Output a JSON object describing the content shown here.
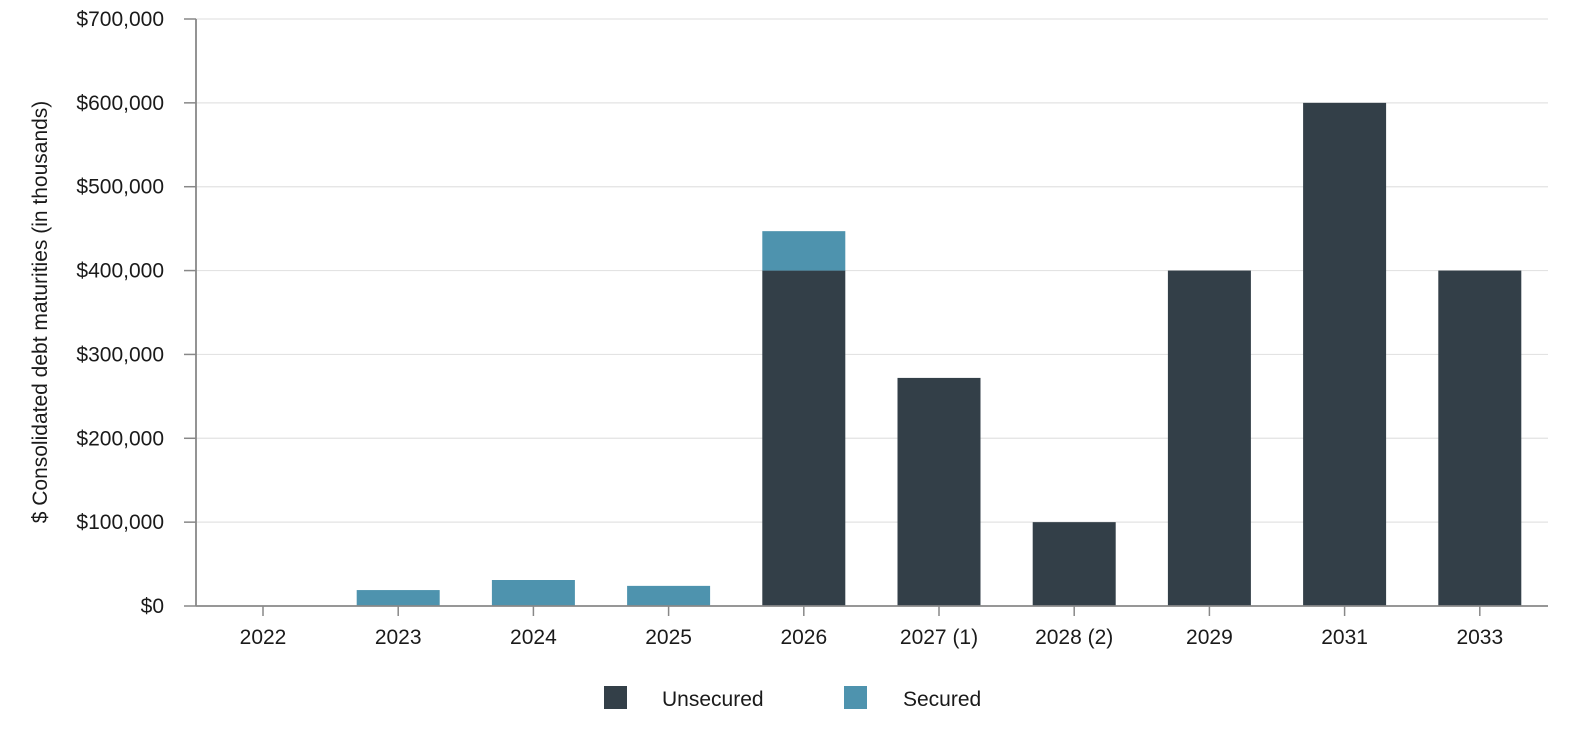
{
  "chart_data": {
    "type": "bar",
    "stacked": true,
    "title": "",
    "xlabel": "",
    "ylabel": "$ Consolidated debt maturities (in thousands)",
    "ylim": [
      0,
      700000
    ],
    "yticks": [
      0,
      100000,
      200000,
      300000,
      400000,
      500000,
      600000,
      700000
    ],
    "ytick_labels": [
      "$0",
      "$100,000",
      "$200,000",
      "$300,000",
      "$400,000",
      "$500,000",
      "$600,000",
      "$700,000"
    ],
    "categories": [
      "2022",
      "2023",
      "2024",
      "2025",
      "2026",
      "2027 (1)",
      "2028 (2)",
      "2029",
      "2031",
      "2033"
    ],
    "series": [
      {
        "name": "Unsecured",
        "color": "#333f48",
        "values": [
          0,
          0,
          0,
          0,
          400000,
          272000,
          100000,
          400000,
          600000,
          400000
        ]
      },
      {
        "name": "Secured",
        "color": "#4e93ae",
        "values": [
          0,
          19000,
          31000,
          24000,
          47000,
          0,
          0,
          0,
          0,
          0
        ]
      }
    ],
    "grid": true,
    "legend_position": "bottom-center"
  }
}
